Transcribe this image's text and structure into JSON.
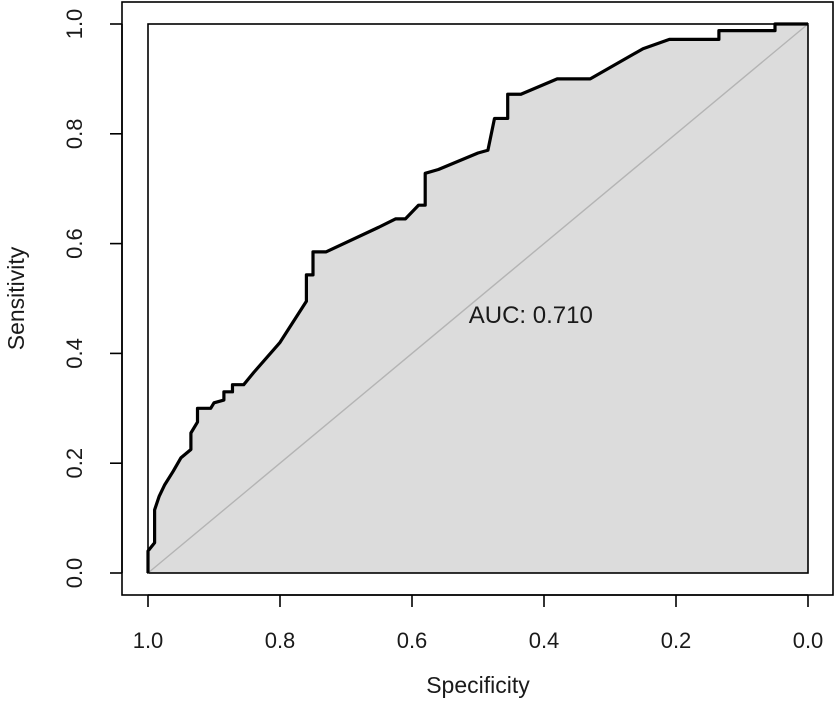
{
  "chart_data": {
    "type": "line",
    "title": "",
    "xlabel": "Specificity",
    "ylabel": "Sensitivity",
    "xlim": [
      1.0,
      0.0
    ],
    "ylim": [
      0.0,
      1.0
    ],
    "x_reversed": true,
    "x_ticks": [
      {
        "value": 1.0,
        "label": "1.0"
      },
      {
        "value": 0.8,
        "label": "0.8"
      },
      {
        "value": 0.6,
        "label": "0.6"
      },
      {
        "value": 0.4,
        "label": "0.4"
      },
      {
        "value": 0.2,
        "label": "0.2"
      },
      {
        "value": 0.0,
        "label": "0.0"
      }
    ],
    "y_ticks": [
      {
        "value": 0.0,
        "label": "0.0"
      },
      {
        "value": 0.2,
        "label": "0.2"
      },
      {
        "value": 0.4,
        "label": "0.4"
      },
      {
        "value": 0.6,
        "label": "0.6"
      },
      {
        "value": 0.8,
        "label": "0.8"
      },
      {
        "value": 1.0,
        "label": "1.0"
      }
    ],
    "annotation": {
      "text": "AUC: 0.710",
      "x": 0.42,
      "y": 0.47
    },
    "grid": false,
    "fill_under_curve": true,
    "fill_color": "#dcdcdc",
    "curve_color": "#000000",
    "diagonal_color": "#b4b4b4",
    "series": [
      {
        "points": [
          [
            1.0,
            0.0
          ],
          [
            1.0,
            0.04
          ],
          [
            0.99,
            0.055
          ],
          [
            0.99,
            0.115
          ],
          [
            0.983,
            0.14
          ],
          [
            0.975,
            0.16
          ],
          [
            0.962,
            0.185
          ],
          [
            0.95,
            0.21
          ],
          [
            0.935,
            0.225
          ],
          [
            0.935,
            0.255
          ],
          [
            0.925,
            0.275
          ],
          [
            0.925,
            0.3
          ],
          [
            0.905,
            0.3
          ],
          [
            0.9,
            0.31
          ],
          [
            0.885,
            0.315
          ],
          [
            0.885,
            0.33
          ],
          [
            0.872,
            0.33
          ],
          [
            0.872,
            0.343
          ],
          [
            0.855,
            0.343
          ],
          [
            0.84,
            0.365
          ],
          [
            0.8,
            0.42
          ],
          [
            0.76,
            0.495
          ],
          [
            0.76,
            0.543
          ],
          [
            0.75,
            0.543
          ],
          [
            0.75,
            0.585
          ],
          [
            0.73,
            0.585
          ],
          [
            0.65,
            0.63
          ],
          [
            0.625,
            0.645
          ],
          [
            0.61,
            0.645
          ],
          [
            0.59,
            0.67
          ],
          [
            0.58,
            0.67
          ],
          [
            0.58,
            0.728
          ],
          [
            0.56,
            0.735
          ],
          [
            0.5,
            0.765
          ],
          [
            0.485,
            0.77
          ],
          [
            0.475,
            0.828
          ],
          [
            0.455,
            0.828
          ],
          [
            0.455,
            0.872
          ],
          [
            0.435,
            0.872
          ],
          [
            0.38,
            0.9
          ],
          [
            0.33,
            0.9
          ],
          [
            0.25,
            0.955
          ],
          [
            0.21,
            0.972
          ],
          [
            0.135,
            0.972
          ],
          [
            0.135,
            0.988
          ],
          [
            0.05,
            0.988
          ],
          [
            0.05,
            1.0
          ],
          [
            0.0,
            1.0
          ]
        ]
      }
    ]
  }
}
